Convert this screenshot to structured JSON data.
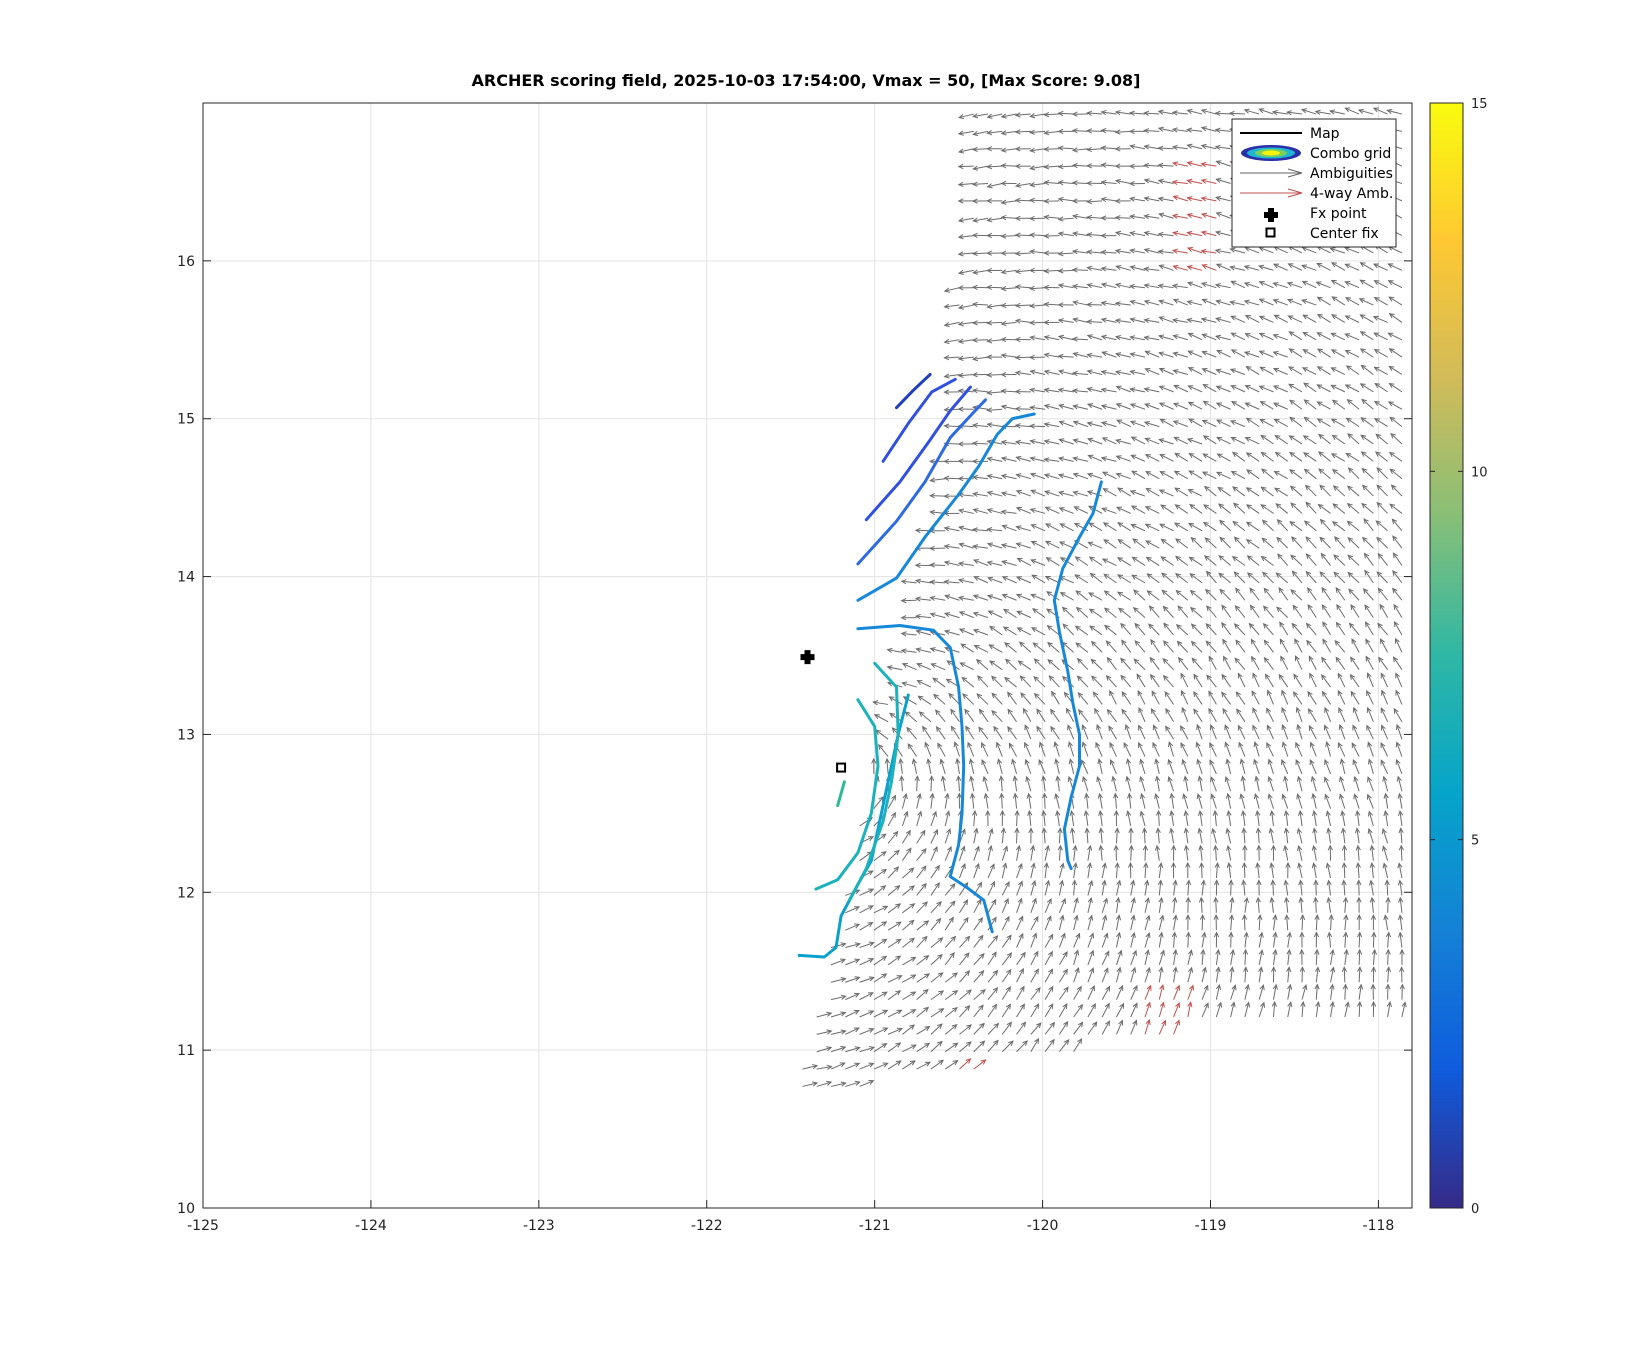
{
  "chart_data": {
    "type": "scatter",
    "title": "ARCHER scoring field, 2025-10-03 17:54:00, Vmax = 50, [Max Score: 9.08]",
    "xlabel": "",
    "ylabel": "",
    "xlim": [
      -125,
      -117.8
    ],
    "ylim": [
      10,
      17
    ],
    "xticks": [
      "-125",
      "-124",
      "-123",
      "-122",
      "-121",
      "-120",
      "-119",
      "-118"
    ],
    "yticks": [
      "10",
      "11",
      "12",
      "13",
      "14",
      "15",
      "16"
    ],
    "grid": true,
    "legend_placement": "top-right",
    "legend": [
      {
        "label": "Map",
        "symbol": "black-line"
      },
      {
        "label": "Combo grid",
        "symbol": "contour-ellipse"
      },
      {
        "label": "Ambiguities",
        "symbol": "gray-arrow"
      },
      {
        "label": "4-way Amb.",
        "symbol": "red-arrow"
      },
      {
        "label": "Fx point",
        "symbol": "black-cross"
      },
      {
        "label": "Center fix",
        "symbol": "black-square"
      }
    ],
    "colorbar": {
      "range": [
        0,
        15
      ],
      "ticks": [
        "0",
        "5",
        "10",
        "15"
      ],
      "colormap": "parula"
    },
    "fx_point": {
      "x": -121.4,
      "y": 13.49
    },
    "center_fix": {
      "x": -121.2,
      "y": 12.79
    },
    "contours": [
      {
        "level": 2.0,
        "points": [
          [
            -120.87,
            15.07
          ],
          [
            -120.77,
            15.18
          ],
          [
            -120.67,
            15.28
          ]
        ]
      },
      {
        "level": 3.0,
        "points": [
          [
            -120.95,
            14.73
          ],
          [
            -120.8,
            14.97
          ],
          [
            -120.66,
            15.17
          ],
          [
            -120.52,
            15.25
          ]
        ]
      },
      {
        "level": 3.8,
        "points": [
          [
            -121.05,
            14.36
          ],
          [
            -120.85,
            14.6
          ],
          [
            -120.68,
            14.85
          ],
          [
            -120.55,
            15.05
          ],
          [
            -120.43,
            15.2
          ]
        ]
      },
      {
        "level": 4.6,
        "points": [
          [
            -121.1,
            14.08
          ],
          [
            -120.87,
            14.35
          ],
          [
            -120.7,
            14.6
          ],
          [
            -120.55,
            14.88
          ],
          [
            -120.42,
            15.03
          ],
          [
            -120.34,
            15.12
          ]
        ]
      },
      {
        "level": 5.4,
        "points": [
          [
            -121.1,
            13.85
          ],
          [
            -120.87,
            13.99
          ],
          [
            -120.7,
            14.25
          ],
          [
            -120.5,
            14.52
          ],
          [
            -120.38,
            14.7
          ],
          [
            -120.27,
            14.9
          ],
          [
            -120.18,
            15.0
          ],
          [
            -120.05,
            15.03
          ]
        ]
      },
      {
        "level": 5.6,
        "points": [
          [
            -119.65,
            14.6
          ],
          [
            -119.7,
            14.4
          ],
          [
            -119.78,
            14.25
          ],
          [
            -119.88,
            14.05
          ],
          [
            -119.93,
            13.85
          ],
          [
            -119.9,
            13.65
          ],
          [
            -119.85,
            13.4
          ],
          [
            -119.82,
            13.2
          ],
          [
            -119.78,
            13.0
          ],
          [
            -119.78,
            12.8
          ],
          [
            -119.83,
            12.6
          ],
          [
            -119.87,
            12.4
          ],
          [
            -119.85,
            12.2
          ],
          [
            -119.83,
            12.15
          ]
        ]
      },
      {
        "level": 5.6,
        "points": [
          [
            -121.1,
            13.67
          ],
          [
            -120.85,
            13.69
          ],
          [
            -120.65,
            13.66
          ],
          [
            -120.55,
            13.55
          ],
          [
            -120.5,
            13.3
          ],
          [
            -120.48,
            13.05
          ],
          [
            -120.47,
            12.8
          ],
          [
            -120.48,
            12.5
          ],
          [
            -120.5,
            12.3
          ],
          [
            -120.55,
            12.1
          ],
          [
            -120.45,
            12.03
          ],
          [
            -120.35,
            11.95
          ],
          [
            -120.3,
            11.75
          ]
        ]
      },
      {
        "level": 6.8,
        "points": [
          [
            -120.8,
            13.25
          ],
          [
            -120.86,
            13.0
          ],
          [
            -120.92,
            12.7
          ],
          [
            -120.98,
            12.4
          ],
          [
            -121.02,
            12.2
          ],
          [
            -121.1,
            12.05
          ],
          [
            -121.2,
            11.85
          ],
          [
            -121.23,
            11.65
          ],
          [
            -121.3,
            11.59
          ],
          [
            -121.45,
            11.6
          ]
        ]
      },
      {
        "level": 7.6,
        "points": [
          [
            -121.0,
            13.45
          ],
          [
            -120.87,
            13.3
          ],
          [
            -120.86,
            13.0
          ],
          [
            -120.9,
            12.7
          ],
          [
            -120.95,
            12.45
          ],
          [
            -121.05,
            12.15
          ],
          [
            -121.15,
            11.95
          ]
        ]
      },
      {
        "level": 7.7,
        "points": [
          [
            -121.1,
            13.22
          ],
          [
            -121.0,
            13.05
          ],
          [
            -120.98,
            12.8
          ],
          [
            -121.02,
            12.5
          ],
          [
            -121.1,
            12.25
          ],
          [
            -121.22,
            12.08
          ],
          [
            -121.35,
            12.02
          ]
        ]
      },
      {
        "level": 8.6,
        "points": [
          [
            -121.18,
            12.7
          ],
          [
            -121.22,
            12.55
          ]
        ]
      }
    ]
  }
}
